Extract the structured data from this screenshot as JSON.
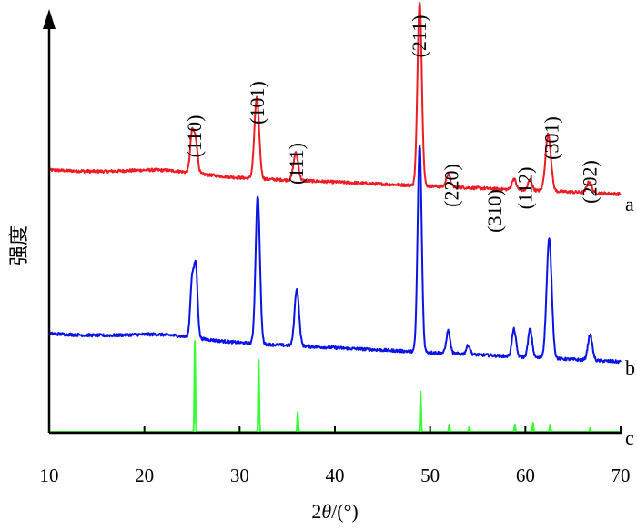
{
  "chart_data": {
    "type": "line",
    "xlabel_prefix": "2",
    "xlabel_var": "θ",
    "xlabel_suffix": "/(°)",
    "ylabel": "强度",
    "xlim": [
      10,
      70
    ],
    "x_ticks": [
      10,
      20,
      30,
      40,
      50,
      60,
      70
    ],
    "series": [
      {
        "name": "a",
        "color": "#ee1c24",
        "baseline_start": 0.31,
        "baseline_end": 0.045,
        "noise": 0.016,
        "peaks": [
          {
            "x": 25.0,
            "h": 0.43,
            "w": 0.28
          },
          {
            "x": 25.4,
            "h": 0.34,
            "w": 0.28
          },
          {
            "x": 31.8,
            "h": 0.89,
            "w": 0.35
          },
          {
            "x": 35.9,
            "h": 0.3,
            "w": 0.35
          },
          {
            "x": 48.9,
            "h": 2.03,
            "w": 0.32
          },
          {
            "x": 51.9,
            "h": 0.14,
            "w": 0.3
          },
          {
            "x": 58.8,
            "h": 0.12,
            "w": 0.3
          },
          {
            "x": 60.5,
            "h": 0.12,
            "w": 0.3
          },
          {
            "x": 62.4,
            "h": 0.63,
            "w": 0.4
          },
          {
            "x": 66.7,
            "h": 0.12,
            "w": 0.35
          }
        ]
      },
      {
        "name": "b",
        "color": "#0a14e6",
        "baseline_start": 0.31,
        "baseline_end": 0.0,
        "noise": 0.016,
        "peaks": [
          {
            "x": 25.0,
            "h": 0.62,
            "w": 0.26
          },
          {
            "x": 25.4,
            "h": 0.78,
            "w": 0.26
          },
          {
            "x": 31.9,
            "h": 1.63,
            "w": 0.32
          },
          {
            "x": 36.0,
            "h": 0.63,
            "w": 0.33
          },
          {
            "x": 48.9,
            "h": 2.28,
            "w": 0.3
          },
          {
            "x": 51.9,
            "h": 0.25,
            "w": 0.28
          },
          {
            "x": 54.0,
            "h": 0.1,
            "w": 0.28
          },
          {
            "x": 58.8,
            "h": 0.3,
            "w": 0.3
          },
          {
            "x": 60.5,
            "h": 0.31,
            "w": 0.3
          },
          {
            "x": 62.5,
            "h": 1.31,
            "w": 0.38
          },
          {
            "x": 66.8,
            "h": 0.28,
            "w": 0.33
          }
        ]
      },
      {
        "name": "c",
        "color": "#33ff33",
        "baseline_start": 0.0,
        "baseline_end": 0.0,
        "noise": 0.0,
        "peaks": [
          {
            "x": 25.3,
            "h": 1.0,
            "w": 0.07
          },
          {
            "x": 32.0,
            "h": 0.79,
            "w": 0.07
          },
          {
            "x": 36.1,
            "h": 0.22,
            "w": 0.07
          },
          {
            "x": 49.0,
            "h": 0.44,
            "w": 0.07
          },
          {
            "x": 52.0,
            "h": 0.08,
            "w": 0.07
          },
          {
            "x": 54.1,
            "h": 0.05,
            "w": 0.07
          },
          {
            "x": 58.9,
            "h": 0.08,
            "w": 0.07
          },
          {
            "x": 60.8,
            "h": 0.1,
            "w": 0.07
          },
          {
            "x": 62.6,
            "h": 0.08,
            "w": 0.07
          },
          {
            "x": 66.8,
            "h": 0.04,
            "w": 0.07
          }
        ]
      }
    ],
    "peak_labels": [
      {
        "text": "(110)",
        "x": 25.3
      },
      {
        "text": "(101)",
        "x": 31.9
      },
      {
        "text": "(111)",
        "x": 36.0
      },
      {
        "text": "(211)",
        "x": 48.9
      },
      {
        "text": "(220)",
        "x": 52.3
      },
      {
        "text": "(310)",
        "x": 56.8
      },
      {
        "text": "(112)",
        "x": 60.0
      },
      {
        "text": "(301)",
        "x": 62.8
      },
      {
        "text": "(202)",
        "x": 66.8
      }
    ]
  }
}
